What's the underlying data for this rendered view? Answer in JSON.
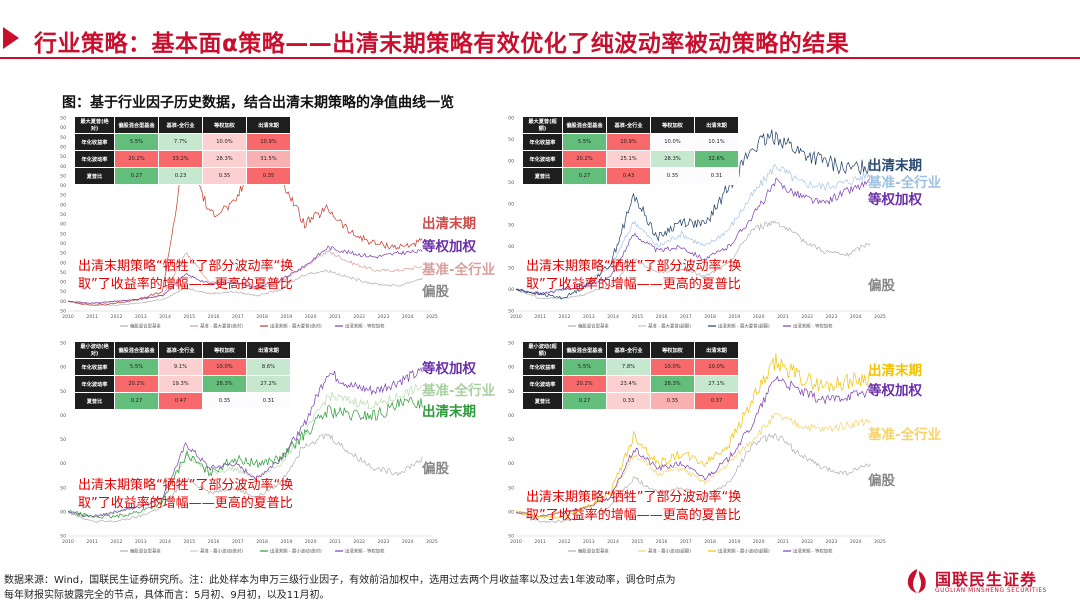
{
  "header": {
    "title": "行业策略：基本面α策略——出清末期策略有效优化了纯波动率被动策略的结果"
  },
  "figure_caption": "图：基于行业因子历史数据，结合出清末期策略的净值曲线一览",
  "annotation": "出清末期策略“牺牲”了部分波动率“换\n取”了收益率的增幅——更高的夏普比",
  "footer": {
    "line1": "数据来源：Wind，国联民生证券研究所。注：此处样本为申万三级行业因子，有效前沿加权中，选用过去两个月收益率以及过去1年波动率，调仓时点为",
    "line2": "每年财报实际披露完全的节点，具体而言：5月初、9月初，以及11月初。"
  },
  "logo": {
    "cn": "国联民生证券",
    "en": "GUOLIAN MINSHENG SECURITIES"
  },
  "colors": {
    "accent": "#c8102e",
    "good": "#63be7b",
    "bad": "#f8696b",
    "neutral": "#fcfcff"
  },
  "chart_data": [
    {
      "type": "line",
      "x": [
        2010,
        2011,
        2012,
        2013,
        2014,
        2015,
        2016,
        2017,
        2018,
        2019,
        2020,
        2021,
        2022,
        2023,
        2024,
        2025
      ],
      "ylim": [
        0.5,
        10.5
      ],
      "yticks": [
        "0.50",
        "1.00",
        "1.50",
        "2.00",
        "2.50",
        "3.00",
        "3.50",
        "4.00",
        "4.50",
        "5.00",
        "5.50",
        "6.00",
        "6.50",
        "7.00",
        "7.50",
        "8.00",
        "8.50",
        "9.00",
        "9.50",
        "10.00",
        "10.50"
      ],
      "table": {
        "headers": [
          "最大夏普(绝对)",
          "偏股混合型基金",
          "基准-全行业",
          "等权加权",
          "出清末期"
        ],
        "rows": [
          {
            "label": "年化收益率",
            "values": [
              "5.5%",
              "7.7%",
              "10.0%",
              "10.9%"
            ]
          },
          {
            "label": "年化波动率",
            "values": [
              "20.2%",
              "33.2%",
              "28.3%",
              "31.5%"
            ]
          },
          {
            "label": "夏普比",
            "values": [
              "0.27",
              "0.23",
              "0.35",
              "0.35"
            ]
          }
        ]
      },
      "legend": [
        "偏股混合型基金",
        "基准 - 最大夏普(绝对)",
        "出清末期 - 最大夏普(绝对)",
        "出清末期 - 等权加权"
      ],
      "end_labels": [
        "出清末期",
        "等权加权",
        "基准-全行业",
        "偏股"
      ],
      "series_end": [
        4.1,
        3.6,
        2.9,
        2.2
      ]
    },
    {
      "type": "line",
      "x": [
        2010,
        2011,
        2012,
        2013,
        2014,
        2015,
        2016,
        2017,
        2018,
        2019,
        2020,
        2021,
        2022,
        2023,
        2024,
        2025
      ],
      "ylim": [
        0.5,
        5.0
      ],
      "yticks": [
        "0.50",
        "1.00",
        "1.50",
        "2.00",
        "2.50",
        "3.00",
        "3.50",
        "4.00",
        "4.50",
        "5.00"
      ],
      "table": {
        "headers": [
          "最大夏普(超额)",
          "偏股混合型基金",
          "基准-全行业",
          "等权加权",
          "出清末期"
        ],
        "rows": [
          {
            "label": "年化收益率",
            "values": [
              "5.5%",
              "10.9%",
              "10.0%",
              "10.1%"
            ]
          },
          {
            "label": "年化波动率",
            "values": [
              "20.2%",
              "25.1%",
              "28.3%",
              "32.6%"
            ]
          },
          {
            "label": "夏普比",
            "values": [
              "0.27",
              "0.43",
              "0.35",
              "0.31"
            ]
          }
        ]
      },
      "legend": [
        "偏股混合型基金",
        "基准 - 最大夏普(超额)",
        "出清末期 - 最大夏普(超额)",
        "出清末期 - 等权加权"
      ],
      "end_labels": [
        "出清末期",
        "基准-全行业",
        "等权加权",
        "偏股"
      ],
      "series_end": [
        3.9,
        3.7,
        3.5,
        2.1
      ]
    },
    {
      "type": "line",
      "x": [
        2010,
        2011,
        2012,
        2013,
        2014,
        2015,
        2016,
        2017,
        2018,
        2019,
        2020,
        2021,
        2022,
        2023,
        2024,
        2025
      ],
      "ylim": [
        0.5,
        4.5
      ],
      "yticks": [
        "0.50",
        "1.00",
        "1.50",
        "2.00",
        "2.50",
        "3.00",
        "3.50",
        "4.00",
        "4.50"
      ],
      "table": {
        "headers": [
          "最小波动(绝对)",
          "偏股混合型基金",
          "基准-全行业",
          "等权加权",
          "出清末期"
        ],
        "rows": [
          {
            "label": "年化收益率",
            "values": [
              "5.5%",
              "9.1%",
              "10.0%",
              "8.6%"
            ]
          },
          {
            "label": "年化波动率",
            "values": [
              "20.2%",
              "19.3%",
              "28.3%",
              "27.2%"
            ]
          },
          {
            "label": "夏普比",
            "values": [
              "0.27",
              "0.47",
              "0.35",
              "0.31"
            ]
          }
        ]
      },
      "legend": [
        "偏股混合型基金",
        "基准 - 最小波动(绝对)",
        "出清末期 - 最小波动(绝对)",
        "出清末期 - 等权加权"
      ],
      "end_labels": [
        "等权加权",
        "基准-全行业",
        "出清末期",
        "偏股"
      ],
      "series_end": [
        3.9,
        3.6,
        3.3,
        2.1
      ]
    },
    {
      "type": "line",
      "x": [
        2010,
        2011,
        2012,
        2013,
        2014,
        2015,
        2016,
        2017,
        2018,
        2019,
        2020,
        2021,
        2022,
        2023,
        2024,
        2025
      ],
      "ylim": [
        0.5,
        4.5
      ],
      "yticks": [
        "0.50",
        "1.00",
        "1.50",
        "2.00",
        "2.50",
        "3.00",
        "3.50",
        "4.00",
        "4.50"
      ],
      "table": {
        "headers": [
          "最小波动(超额)",
          "偏股混合型基金",
          "基准-全行业",
          "等权加权",
          "出清末期"
        ],
        "rows": [
          {
            "label": "年化收益率",
            "values": [
              "5.5%",
              "7.8%",
              "10.0%",
              "10.0%"
            ]
          },
          {
            "label": "年化波动率",
            "values": [
              "20.2%",
              "23.4%",
              "28.3%",
              "27.1%"
            ]
          },
          {
            "label": "夏普比",
            "values": [
              "0.27",
              "0.33",
              "0.35",
              "0.37"
            ]
          }
        ]
      },
      "legend": [
        "偏股混合型基金",
        "基准 - 最小波动(超额)",
        "出清末期 - 最小波动(超额)",
        "出清末期 - 等权加权"
      ],
      "end_labels": [
        "出清末期",
        "等权加权",
        "基准-全行业",
        "偏股"
      ],
      "series_end": [
        3.8,
        3.5,
        2.9,
        2.0
      ]
    }
  ]
}
